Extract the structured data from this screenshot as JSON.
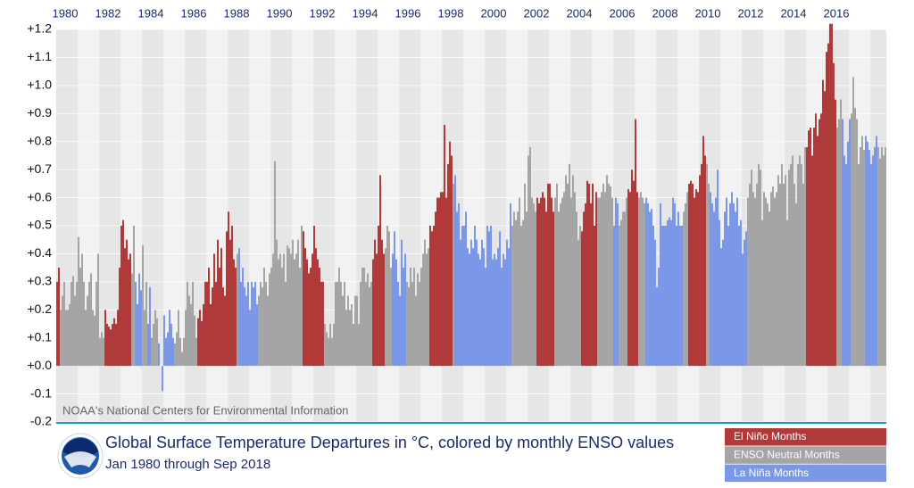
{
  "chart_data": {
    "type": "bar",
    "title": "Global Surface Temperature Departures in °C, colored by monthly ENSO values",
    "subtitle": "Jan 1980 through Sep 2018",
    "source": "NOAA's National Centers for Environmental Information",
    "legend": [
      {
        "name": "El Niño Months",
        "color": "#b03a3a"
      },
      {
        "name": "ENSO Neutral Months",
        "color": "#a5a5a5"
      },
      {
        "name": "La Niña Months",
        "color": "#7b98e8"
      }
    ],
    "xlim": [
      1980,
      2018.75
    ],
    "xticks": [
      1980,
      1982,
      1984,
      1986,
      1988,
      1990,
      1992,
      1994,
      1996,
      1998,
      2000,
      2002,
      2004,
      2006,
      2008,
      2010,
      2012,
      2014,
      2016
    ],
    "ylim": [
      -0.2,
      1.2
    ],
    "yticks": [
      -0.2,
      -0.1,
      {
        "value": 0,
        "label": "+0.0"
      },
      {
        "value": 0.1,
        "label": "+0.1"
      },
      {
        "value": 0.2,
        "label": "+0.2"
      },
      {
        "value": 0.3,
        "label": "+0.3"
      },
      {
        "value": 0.4,
        "label": "+0.4"
      },
      {
        "value": 0.5,
        "label": "+0.5"
      },
      {
        "value": 0.6,
        "label": "+0.6"
      },
      {
        "value": 0.7,
        "label": "+0.7"
      },
      {
        "value": 0.8,
        "label": "+0.8"
      },
      {
        "value": 0.9,
        "label": "+0.9"
      },
      {
        "value": 1.0,
        "label": "+1.0"
      },
      {
        "value": 1.1,
        "label": "+1.1"
      },
      {
        "value": 1.2,
        "label": "+1.2"
      }
    ],
    "grid": true,
    "values": [
      0.3,
      0.35,
      0.2,
      0.25,
      0.3,
      0.2,
      0.2,
      0.22,
      0.3,
      0.32,
      0.25,
      0.3,
      0.46,
      0.35,
      0.4,
      0.3,
      0.2,
      0.25,
      0.3,
      0.33,
      0.2,
      0.18,
      0.3,
      0.4,
      0.1,
      0.12,
      0.1,
      0.2,
      0.15,
      0.14,
      0.13,
      0.15,
      0.17,
      0.15,
      0.2,
      0.35,
      0.5,
      0.52,
      0.42,
      0.45,
      0.38,
      0.4,
      0.33,
      0.5,
      0.3,
      0.22,
      0.33,
      0.27,
      0.43,
      0.2,
      0.3,
      0.15,
      0.28,
      0.1,
      0.15,
      0.2,
      0.17,
      0.08,
      0.0,
      -0.09,
      0.18,
      0.1,
      0.12,
      0.2,
      0.15,
      0.1,
      0.08,
      0.12,
      0.2,
      0.1,
      0.05,
      0.1,
      0.2,
      0.3,
      0.25,
      0.22,
      0.3,
      0.18,
      0.1,
      0.17,
      0.2,
      0.16,
      0.22,
      0.3,
      0.3,
      0.35,
      0.22,
      0.28,
      0.4,
      0.3,
      0.45,
      0.35,
      0.42,
      0.28,
      0.25,
      0.48,
      0.55,
      0.45,
      0.5,
      0.38,
      0.35,
      0.4,
      0.42,
      0.3,
      0.35,
      0.28,
      0.25,
      0.3,
      0.2,
      0.3,
      0.28,
      0.3,
      0.22,
      0.25,
      0.3,
      0.28,
      0.35,
      0.3,
      0.25,
      0.33,
      0.35,
      0.4,
      0.73,
      0.45,
      0.38,
      0.4,
      0.35,
      0.4,
      0.3,
      0.43,
      0.42,
      0.4,
      0.45,
      0.38,
      0.4,
      0.45,
      0.35,
      0.5,
      0.48,
      0.42,
      0.38,
      0.33,
      0.35,
      0.4,
      0.5,
      0.42,
      0.38,
      0.35,
      0.3,
      0.3,
      0.15,
      0.12,
      0.1,
      0.15,
      0.1,
      0.15,
      0.3,
      0.3,
      0.35,
      0.3,
      0.25,
      0.3,
      0.2,
      0.25,
      0.2,
      0.22,
      0.15,
      0.25,
      0.25,
      0.15,
      0.3,
      0.35,
      0.35,
      0.3,
      0.33,
      0.28,
      0.3,
      0.38,
      0.45,
      0.4,
      0.5,
      0.68,
      0.45,
      0.4,
      0.42,
      0.5,
      0.48,
      0.35,
      0.4,
      0.48,
      0.38,
      0.3,
      0.25,
      0.45,
      0.35,
      0.4,
      0.3,
      0.28,
      0.35,
      0.3,
      0.35,
      0.25,
      0.33,
      0.3,
      0.35,
      0.4,
      0.45,
      0.4,
      0.42,
      0.5,
      0.48,
      0.5,
      0.55,
      0.6,
      0.6,
      0.62,
      0.62,
      0.86,
      0.6,
      0.72,
      0.8,
      0.75,
      0.65,
      0.68,
      0.55,
      0.58,
      0.45,
      0.5,
      0.5,
      0.55,
      0.42,
      0.4,
      0.45,
      0.42,
      0.5,
      0.45,
      0.4,
      0.38,
      0.45,
      0.42,
      0.35,
      0.5,
      0.48,
      0.5,
      0.38,
      0.4,
      0.38,
      0.42,
      0.48,
      0.35,
      0.4,
      0.38,
      0.45,
      0.42,
      0.58,
      0.5,
      0.55,
      0.52,
      0.55,
      0.6,
      0.5,
      0.52,
      0.65,
      0.55,
      0.75,
      0.78,
      0.6,
      0.58,
      0.55,
      0.6,
      0.58,
      0.6,
      0.62,
      0.6,
      0.55,
      0.65,
      0.65,
      0.6,
      0.55,
      0.6,
      0.65,
      0.55,
      0.58,
      0.6,
      0.62,
      0.68,
      0.65,
      0.72,
      0.6,
      0.68,
      0.62,
      0.55,
      0.45,
      0.5,
      0.48,
      0.55,
      0.58,
      0.66,
      0.65,
      0.58,
      0.65,
      0.5,
      0.62,
      0.6,
      0.6,
      0.62,
      0.65,
      0.62,
      0.68,
      0.65,
      0.64,
      0.6,
      0.5,
      0.6,
      0.58,
      0.5,
      0.52,
      0.55,
      0.55,
      0.6,
      0.63,
      0.62,
      0.7,
      0.66,
      0.88,
      0.62,
      0.6,
      0.62,
      0.6,
      0.58,
      0.6,
      0.58,
      0.55,
      0.56,
      0.5,
      0.45,
      0.28,
      0.35,
      0.58,
      0.5,
      0.5,
      0.5,
      0.52,
      0.53,
      0.52,
      0.6,
      0.58,
      0.5,
      0.55,
      0.5,
      0.5,
      0.55,
      0.58,
      0.62,
      0.65,
      0.66,
      0.65,
      0.6,
      0.63,
      0.62,
      0.68,
      0.72,
      0.82,
      0.75,
      0.72,
      0.65,
      0.62,
      0.58,
      0.55,
      0.6,
      0.7,
      0.52,
      0.42,
      0.45,
      0.55,
      0.6,
      0.5,
      0.58,
      0.62,
      0.58,
      0.55,
      0.6,
      0.5,
      0.52,
      0.4,
      0.45,
      0.48,
      0.6,
      0.65,
      0.7,
      0.62,
      0.6,
      0.65,
      0.72,
      0.7,
      0.52,
      0.62,
      0.6,
      0.58,
      0.55,
      0.62,
      0.64,
      0.6,
      0.62,
      0.68,
      0.65,
      0.72,
      0.65,
      0.68,
      0.52,
      0.7,
      0.72,
      0.75,
      0.65,
      0.58,
      0.72,
      0.75,
      0.72,
      0.65,
      0.78,
      0.78,
      0.84,
      0.85,
      0.75,
      0.85,
      0.9,
      0.82,
      0.88,
      0.9,
      1.02,
      0.98,
      1.12,
      1.15,
      1.22,
      1.22,
      1.08,
      0.95,
      0.85,
      0.88,
      0.95,
      0.88,
      0.75,
      0.72,
      0.8,
      0.88,
      0.9,
      1.03,
      0.92,
      0.88,
      0.72,
      0.78,
      0.82,
      0.77,
      0.82,
      0.8,
      0.77,
      0.72,
      0.75,
      0.78,
      0.82,
      0.78,
      0.74,
      0.78,
      0.75,
      0.78
    ],
    "phases": [
      0,
      0,
      1,
      1,
      1,
      1,
      1,
      1,
      1,
      1,
      1,
      1,
      1,
      1,
      1,
      1,
      1,
      1,
      1,
      1,
      1,
      1,
      1,
      1,
      1,
      1,
      1,
      0,
      0,
      0,
      0,
      0,
      0,
      0,
      0,
      0,
      0,
      0,
      0,
      0,
      0,
      0,
      1,
      1,
      2,
      2,
      2,
      2,
      1,
      1,
      1,
      2,
      2,
      1,
      1,
      1,
      1,
      2,
      2,
      2,
      2,
      2,
      2,
      2,
      2,
      2,
      1,
      1,
      1,
      1,
      1,
      1,
      1,
      1,
      1,
      1,
      1,
      1,
      1,
      0,
      0,
      0,
      0,
      0,
      0,
      0,
      0,
      0,
      0,
      0,
      0,
      0,
      0,
      0,
      0,
      0,
      0,
      0,
      0,
      0,
      0,
      1,
      2,
      2,
      2,
      2,
      2,
      2,
      2,
      2,
      2,
      2,
      2,
      1,
      1,
      1,
      1,
      1,
      1,
      1,
      1,
      1,
      1,
      1,
      1,
      1,
      1,
      1,
      1,
      1,
      1,
      1,
      1,
      1,
      1,
      1,
      1,
      1,
      0,
      0,
      0,
      0,
      0,
      0,
      0,
      0,
      0,
      0,
      0,
      0,
      1,
      1,
      1,
      1,
      1,
      1,
      1,
      1,
      1,
      1,
      1,
      1,
      1,
      1,
      1,
      1,
      1,
      1,
      1,
      1,
      1,
      1,
      1,
      1,
      1,
      1,
      1,
      0,
      0,
      0,
      0,
      0,
      0,
      0,
      1,
      1,
      1,
      1,
      2,
      2,
      2,
      2,
      2,
      2,
      2,
      2,
      1,
      1,
      1,
      1,
      1,
      1,
      1,
      1,
      1,
      1,
      1,
      1,
      1,
      0,
      0,
      0,
      0,
      0,
      0,
      0,
      0,
      0,
      0,
      0,
      0,
      0,
      1,
      2,
      2,
      2,
      2,
      2,
      2,
      2,
      2,
      2,
      2,
      2,
      2,
      2,
      2,
      2,
      2,
      2,
      2,
      2,
      2,
      2,
      2,
      2,
      2,
      2,
      2,
      2,
      2,
      2,
      2,
      2,
      2,
      1,
      1,
      1,
      1,
      1,
      1,
      1,
      1,
      1,
      1,
      1,
      1,
      1,
      1,
      0,
      0,
      0,
      0,
      0,
      0,
      0,
      0,
      0,
      0,
      1,
      1,
      1,
      1,
      1,
      1,
      1,
      1,
      1,
      1,
      1,
      1,
      1,
      1,
      1,
      0,
      0,
      0,
      0,
      0,
      0,
      0,
      0,
      0,
      1,
      1,
      1,
      1,
      1,
      1,
      1,
      1,
      1,
      2,
      2,
      2,
      1,
      1,
      1,
      1,
      1,
      0,
      0,
      0,
      0,
      0,
      0,
      1,
      1,
      1,
      1,
      2,
      2,
      2,
      2,
      2,
      2,
      2,
      2,
      2,
      2,
      2,
      2,
      2,
      2,
      2,
      2,
      2,
      2,
      2,
      2,
      2,
      1,
      1,
      1,
      0,
      0,
      0,
      0,
      0,
      0,
      0,
      0,
      0,
      0,
      1,
      1,
      2,
      2,
      2,
      2,
      2,
      2,
      2,
      2,
      2,
      2,
      2,
      2,
      2,
      2,
      2,
      2,
      2,
      2,
      2,
      2,
      2,
      1,
      1,
      1,
      1,
      1,
      1,
      1,
      1,
      1,
      1,
      1,
      1,
      1,
      1,
      1,
      1,
      1,
      1,
      1,
      1,
      1,
      1,
      1,
      1,
      1,
      1,
      1,
      1,
      1,
      1,
      1,
      1,
      1,
      0,
      0,
      0,
      0,
      0,
      0,
      0,
      0,
      0,
      0,
      0,
      0,
      0,
      0,
      0,
      0,
      0,
      1,
      1,
      1,
      2,
      2,
      2,
      2,
      2,
      1,
      1,
      1,
      1,
      1,
      1,
      1,
      1,
      2,
      2,
      2,
      2,
      2,
      2,
      2,
      1,
      1,
      1,
      1,
      1
    ]
  }
}
